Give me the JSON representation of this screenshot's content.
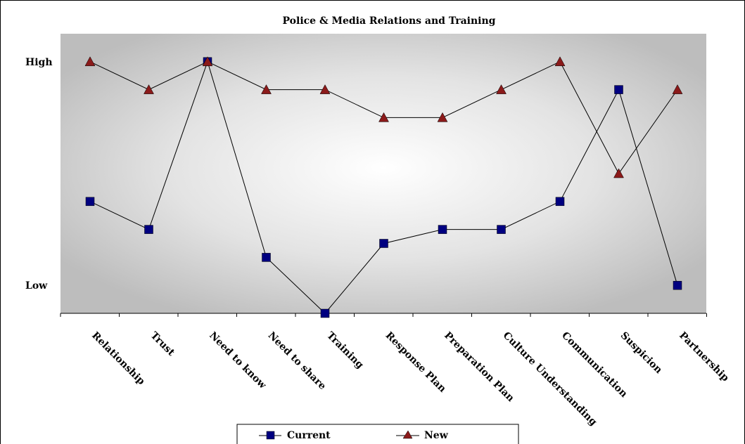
{
  "chart_data": {
    "type": "line",
    "title": "Police & Media Relations and Training",
    "categories": [
      "Relationship",
      "Trust",
      "Need to know",
      "Need to share",
      "Training",
      "Response Plan",
      "Preparation Plan",
      "Culture Understanding",
      "Communication",
      "Suspicion",
      "Partnership"
    ],
    "y_ticks": [
      {
        "label": "High",
        "value": 9
      },
      {
        "label": "Low",
        "value": 1
      }
    ],
    "ylim": [
      0,
      10
    ],
    "series": [
      {
        "name": "Current",
        "marker": "square",
        "color": "#000080",
        "values": [
          4,
          3,
          9,
          2,
          0,
          2.5,
          3,
          3,
          4,
          8,
          1
        ]
      },
      {
        "name": "New",
        "marker": "triangle",
        "color": "#8b1a1a",
        "values": [
          9,
          8,
          9,
          8,
          8,
          7,
          7,
          8,
          9,
          5,
          8
        ]
      }
    ],
    "grid": false,
    "legend_position": "bottom"
  }
}
